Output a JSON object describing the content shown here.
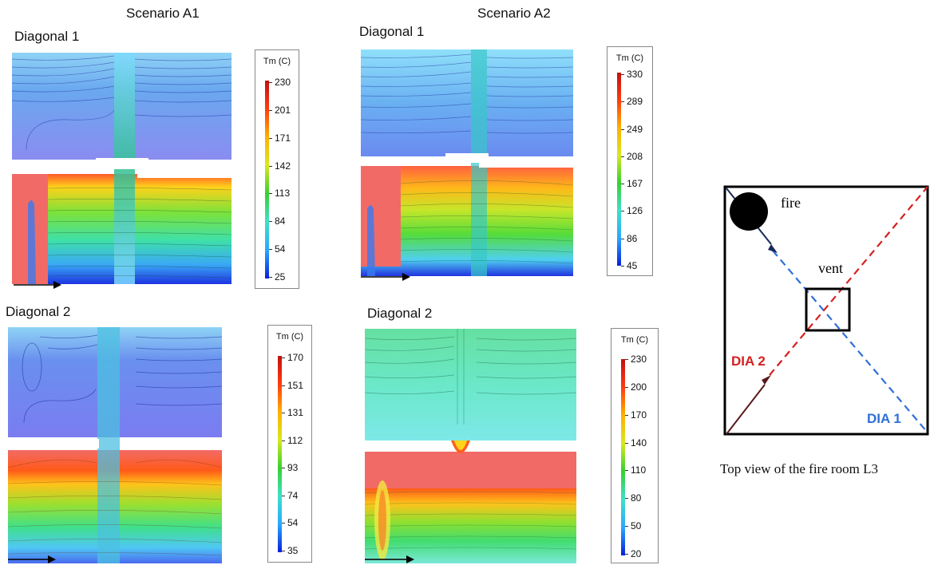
{
  "scenarios": [
    {
      "title": "Scenario A1",
      "panels": [
        {
          "label": "Diagonal 1",
          "legend_title": "Tm (C)",
          "ticks": [
            "230",
            "201",
            "171",
            "142",
            "113",
            "84",
            "54",
            "25"
          ]
        },
        {
          "label": "Diagonal 2",
          "legend_title": "Tm (C)",
          "ticks": [
            "170",
            "151",
            "131",
            "112",
            "93",
            "74",
            "54",
            "35"
          ]
        }
      ]
    },
    {
      "title": "Scenario A2",
      "panels": [
        {
          "label": "Diagonal 1",
          "legend_title": "Tm (C)",
          "ticks": [
            "330",
            "289",
            "249",
            "208",
            "167",
            "126",
            "86",
            "45"
          ]
        },
        {
          "label": "Diagonal 2",
          "legend_title": "Tm (C)",
          "ticks": [
            "230",
            "200",
            "170",
            "140",
            "110",
            "80",
            "50",
            "20"
          ]
        }
      ]
    }
  ],
  "top_view": {
    "fire_label": "fire",
    "vent_label": "vent",
    "dia1_label": "DIA 1",
    "dia2_label": "DIA 2",
    "caption": "Top view of the fire room L3",
    "colors": {
      "dia1": "#2f6fd6",
      "dia2": "#d62020",
      "frame": "#000000"
    }
  },
  "colormap": [
    "#0a1fd8",
    "#2aa8ff",
    "#3fe0c8",
    "#37d030",
    "#d8e820",
    "#ffb000",
    "#ff3b10",
    "#c21010"
  ]
}
